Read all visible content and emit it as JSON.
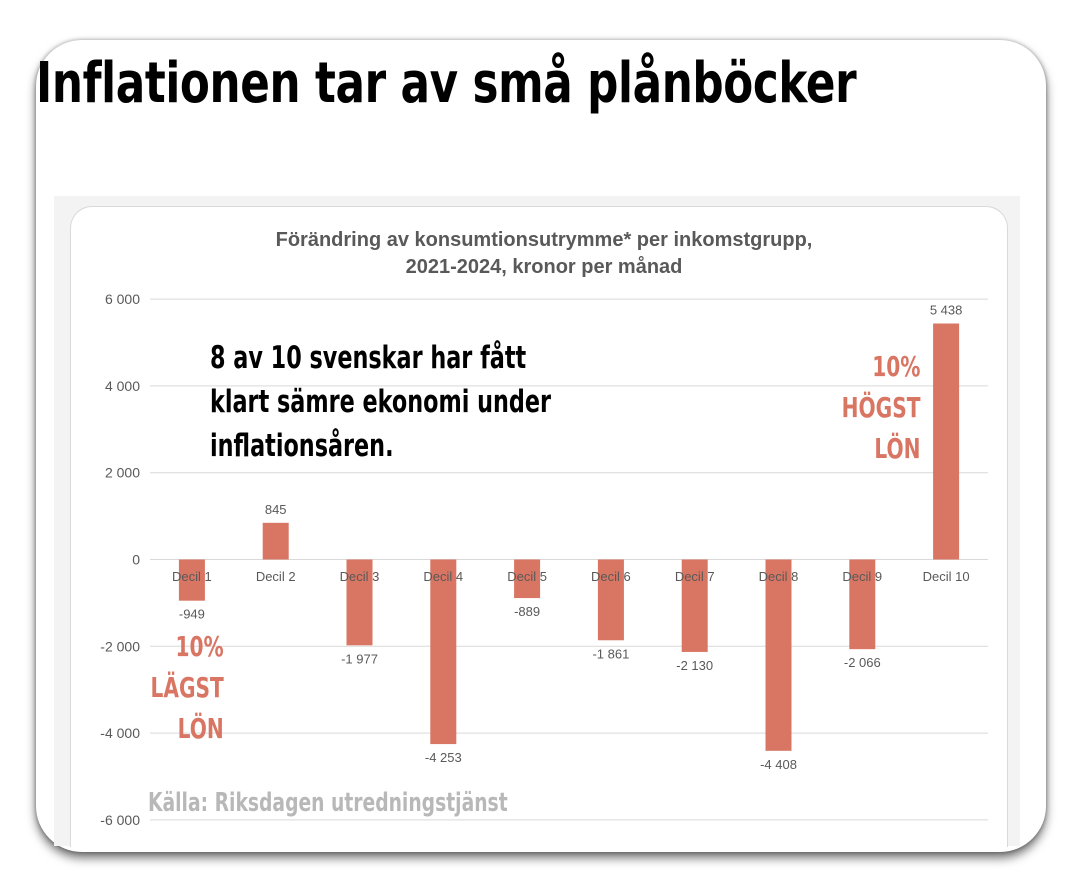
{
  "headline": "Inflationen tar av små plånböcker",
  "annotations": {
    "main_note": [
      "8 av 10 svenskar har fått",
      "klart sämre ekonomi under",
      "inflationsåren."
    ],
    "low_label": [
      "10%",
      "LÄGST",
      "LÖN"
    ],
    "high_label": [
      "10%",
      "HÖGST",
      "LÖN"
    ],
    "source": "Källa: Riksdagen utredningstjänst"
  },
  "colors": {
    "bar": "#d97563",
    "annotation_accent": "#d97563",
    "grid": "#d9d9d9",
    "axis_text": "#595959",
    "title_text": "#595959",
    "source_text": "#b8b8b8"
  },
  "chart_data": {
    "type": "bar",
    "title": "Förändring av konsumtionsutrymme* per inkomstgrupp,",
    "subtitle": "2021-2024, kronor per månad",
    "xlabel": "",
    "ylabel": "",
    "categories": [
      "Decil 1",
      "Decil 2",
      "Decil 3",
      "Decil 4",
      "Decil 5",
      "Decil 6",
      "Decil 7",
      "Decil 8",
      "Decil 9",
      "Decil 10"
    ],
    "values": [
      -949,
      845,
      -1977,
      -4253,
      -889,
      -1861,
      -2130,
      -4408,
      -2066,
      5438
    ],
    "data_labels": [
      "-949",
      "845",
      "-1 977",
      "-4 253",
      "-889",
      "-1 861",
      "-2 130",
      "-4 408",
      "-2 066",
      "5 438"
    ],
    "ylim": [
      -6000,
      6000
    ],
    "yticks": [
      6000,
      4000,
      2000,
      0,
      -2000,
      -4000,
      -6000
    ],
    "ytick_labels": [
      "6 000",
      "4 000",
      "2 000",
      "0",
      "-2 000",
      "-4 000",
      "-6 000"
    ],
    "grid": true,
    "legend": "none"
  }
}
